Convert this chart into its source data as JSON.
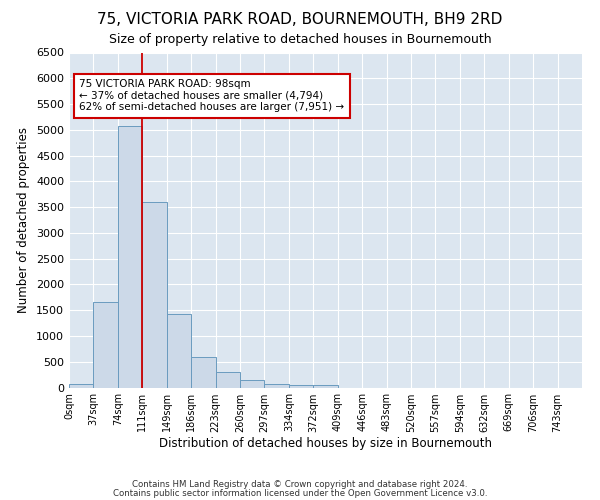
{
  "title": "75, VICTORIA PARK ROAD, BOURNEMOUTH, BH9 2RD",
  "subtitle": "Size of property relative to detached houses in Bournemouth",
  "xlabel": "Distribution of detached houses by size in Bournemouth",
  "ylabel": "Number of detached properties",
  "bar_color": "#ccd9e8",
  "bar_edge_color": "#6a9bbf",
  "plot_bg_color": "#dce6f0",
  "fig_bg_color": "#ffffff",
  "grid_color": "#ffffff",
  "vline_x": 3.0,
  "vline_color": "#cc0000",
  "annotation_text": "75 VICTORIA PARK ROAD: 98sqm\n← 37% of detached houses are smaller (4,794)\n62% of semi-detached houses are larger (7,951) →",
  "annotation_box_color": "#ffffff",
  "annotation_box_edge": "#cc0000",
  "bar_values": [
    60,
    1650,
    5080,
    3600,
    1420,
    600,
    300,
    155,
    75,
    55,
    50,
    0,
    0,
    0,
    0,
    0,
    0,
    0,
    0,
    0,
    0
  ],
  "xtick_labels": [
    "0sqm",
    "37sqm",
    "74sqm",
    "111sqm",
    "149sqm",
    "186sqm",
    "223sqm",
    "260sqm",
    "297sqm",
    "334sqm",
    "372sqm",
    "409sqm",
    "446sqm",
    "483sqm",
    "520sqm",
    "557sqm",
    "594sqm",
    "632sqm",
    "669sqm",
    "706sqm",
    "743sqm"
  ],
  "ylim": [
    0,
    6500
  ],
  "yticks": [
    0,
    500,
    1000,
    1500,
    2000,
    2500,
    3000,
    3500,
    4000,
    4500,
    5000,
    5500,
    6000,
    6500
  ],
  "footer1": "Contains HM Land Registry data © Crown copyright and database right 2024.",
  "footer2": "Contains public sector information licensed under the Open Government Licence v3.0."
}
